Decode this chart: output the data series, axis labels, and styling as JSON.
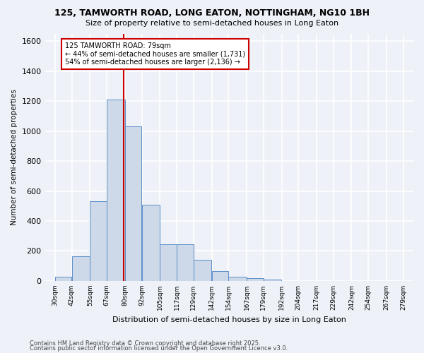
{
  "title1": "125, TAMWORTH ROAD, LONG EATON, NOTTINGHAM, NG10 1BH",
  "title2": "Size of property relative to semi-detached houses in Long Eaton",
  "xlabel": "Distribution of semi-detached houses by size in Long Eaton",
  "ylabel": "Number of semi-detached properties",
  "bin_labels": [
    "30sqm",
    "42sqm",
    "55sqm",
    "67sqm",
    "80sqm",
    "92sqm",
    "105sqm",
    "117sqm",
    "129sqm",
    "142sqm",
    "154sqm",
    "167sqm",
    "179sqm",
    "192sqm",
    "204sqm",
    "217sqm",
    "229sqm",
    "242sqm",
    "254sqm",
    "267sqm",
    "279sqm"
  ],
  "bin_edges": [
    30,
    42,
    55,
    67,
    80,
    92,
    105,
    117,
    129,
    142,
    154,
    167,
    179,
    192,
    204,
    217,
    229,
    242,
    254,
    267,
    279
  ],
  "counts": [
    30,
    165,
    530,
    1210,
    1030,
    510,
    245,
    245,
    140,
    65,
    30,
    20,
    10,
    0,
    0,
    0,
    0,
    0,
    0,
    0
  ],
  "bar_color": "#cdd9e8",
  "bar_edge_color": "#5b8fc9",
  "property_size": 79,
  "property_line_color": "#cc0000",
  "annotation_text": "125 TAMWORTH ROAD: 79sqm\n← 44% of semi-detached houses are smaller (1,731)\n54% of semi-detached houses are larger (2,136) →",
  "annotation_box_color": "#ffffff",
  "annotation_box_edge": "#cc0000",
  "ylim": [
    0,
    1650
  ],
  "yticks": [
    0,
    200,
    400,
    600,
    800,
    1000,
    1200,
    1400,
    1600
  ],
  "footer1": "Contains HM Land Registry data © Crown copyright and database right 2025.",
  "footer2": "Contains public sector information licensed under the Open Government Licence v3.0.",
  "background_color": "#eef2f8",
  "grid_color": "#ffffff"
}
